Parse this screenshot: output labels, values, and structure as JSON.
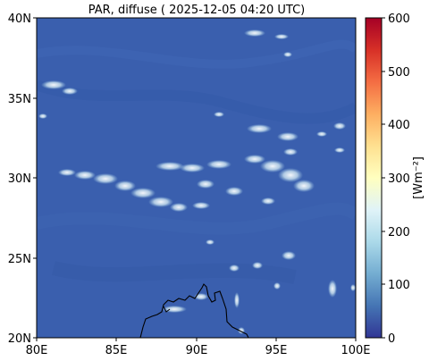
{
  "title": "PAR, diffuse ( 2025-12-05 04:20 UTC)",
  "map": {
    "lon_ticks": [
      "80E",
      "85E",
      "90E",
      "95E",
      "100E"
    ],
    "lat_ticks": [
      "40N",
      "35N",
      "30N",
      "25N",
      "20N"
    ],
    "lon_range": [
      80,
      100
    ],
    "lat_range": [
      20,
      40
    ],
    "background_color": "#3a5fae"
  },
  "colorbar": {
    "label": "[Wm⁻²]",
    "ticks": [
      "600",
      "500",
      "400",
      "300",
      "200",
      "100",
      "0"
    ],
    "range": [
      0,
      600
    ],
    "colors": [
      "#313695",
      "#4575b4",
      "#74add1",
      "#abd9e9",
      "#e0f3f8",
      "#ffffbf",
      "#fee090",
      "#fdae61",
      "#f46d43",
      "#d73027",
      "#a50026"
    ]
  }
}
